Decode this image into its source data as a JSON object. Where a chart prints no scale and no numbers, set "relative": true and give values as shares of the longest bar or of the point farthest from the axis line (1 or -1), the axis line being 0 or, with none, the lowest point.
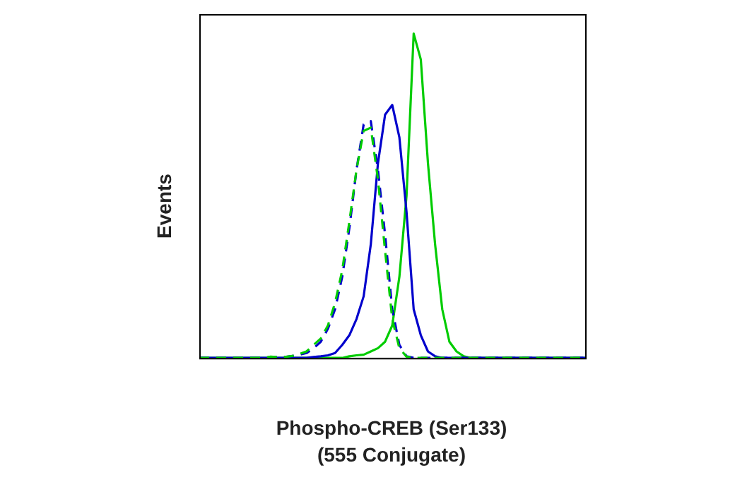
{
  "chart_data": {
    "type": "line",
    "relative": true,
    "xlabel": "Phospho-CREB (Ser133)\n(555 Conjugate)",
    "ylabel": "Events",
    "legend": false,
    "marker": "none",
    "categories": [
      null,
      null,
      null,
      null,
      null,
      null,
      null,
      null,
      null,
      null,
      null,
      null,
      null,
      null,
      null,
      null,
      null,
      null,
      null,
      null,
      null,
      null,
      null,
      null,
      null,
      null,
      null,
      null,
      null,
      null,
      null,
      null,
      null,
      null,
      null,
      null,
      null,
      null,
      null,
      null,
      null,
      null,
      null,
      null,
      null,
      null,
      null,
      null,
      null,
      null,
      null,
      null,
      null,
      null,
      null
    ],
    "series": [
      {
        "color": "#00cc00",
        "line_style": "dashed",
        "values": [
          0,
          0,
          0,
          0,
          0,
          0,
          0,
          0,
          0,
          0,
          0.004,
          0.002,
          0.003,
          0.006,
          0.012,
          0.02,
          0.04,
          0.06,
          0.1,
          0.17,
          0.27,
          0.42,
          0.58,
          0.7,
          0.71,
          0.55,
          0.33,
          0.12,
          0.03,
          0.004,
          0,
          0,
          0,
          0,
          0,
          0,
          0,
          0,
          0,
          0,
          0,
          0,
          0,
          0,
          0,
          0,
          0,
          0,
          0,
          0,
          0,
          0,
          0,
          0,
          0
        ]
      },
      {
        "color": "#0000cc",
        "line_style": "dashed",
        "values": [
          0,
          0,
          0,
          0,
          0,
          0,
          0,
          0,
          0,
          0,
          0.003,
          0.002,
          0.003,
          0.006,
          0.01,
          0.015,
          0.03,
          0.05,
          0.09,
          0.15,
          0.25,
          0.4,
          0.58,
          0.72,
          0.73,
          0.58,
          0.38,
          0.15,
          0.04,
          0.005,
          0,
          0,
          0,
          0,
          0,
          0,
          0,
          0,
          0,
          0,
          0,
          0,
          0,
          0,
          0,
          0,
          0,
          0,
          0,
          0,
          0,
          0,
          0,
          0,
          0
        ]
      },
      {
        "color": "#0000cc",
        "line_style": "solid",
        "values": [
          0,
          0,
          0,
          0,
          0,
          0,
          0,
          0,
          0,
          0,
          0,
          0,
          0,
          0,
          0,
          0,
          0.003,
          0.005,
          0.008,
          0.015,
          0.04,
          0.07,
          0.12,
          0.19,
          0.35,
          0.6,
          0.75,
          0.78,
          0.68,
          0.45,
          0.15,
          0.07,
          0.02,
          0.005,
          0,
          0,
          0,
          0,
          0,
          0,
          0,
          0,
          0,
          0,
          0,
          0,
          0,
          0,
          0,
          0,
          0,
          0,
          0,
          0,
          0
        ]
      },
      {
        "color": "#00cc00",
        "line_style": "solid",
        "values": [
          0,
          0,
          0,
          0,
          0,
          0,
          0,
          0,
          0,
          0,
          0,
          0,
          0,
          0,
          0,
          0,
          0,
          0,
          0,
          0,
          0,
          0.005,
          0.008,
          0.01,
          0.02,
          0.03,
          0.05,
          0.1,
          0.25,
          0.5,
          1,
          0.92,
          0.6,
          0.35,
          0.15,
          0.05,
          0.02,
          0.005,
          0,
          0,
          0,
          0,
          0,
          0,
          0,
          0,
          0,
          0,
          0,
          0,
          0,
          0,
          0,
          0,
          0
        ]
      }
    ]
  }
}
